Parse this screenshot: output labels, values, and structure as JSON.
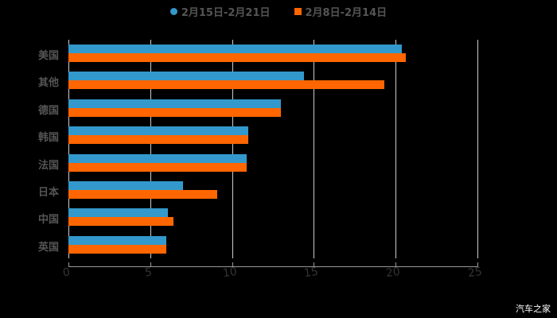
{
  "chart_data": {
    "type": "bar",
    "orientation": "horizontal",
    "title": "",
    "xlabel": "",
    "ylabel": "",
    "xlim": [
      0,
      25
    ],
    "x_ticks": [
      "0",
      "5",
      "10",
      "15",
      "20",
      "25"
    ],
    "grid": true,
    "legend_position": "top",
    "categories": [
      "美国",
      "其他",
      "德国",
      "韩国",
      "法国",
      "日本",
      "中国",
      "英国"
    ],
    "series": [
      {
        "name": "2月15日-2月21日",
        "color": "#3399cc",
        "values": [
          20.4,
          14.4,
          13.0,
          11.0,
          10.9,
          7.0,
          6.1,
          6.0
        ]
      },
      {
        "name": "2月8日-2月14日",
        "color": "#ff6600",
        "values": [
          20.6,
          19.3,
          13.0,
          11.0,
          10.9,
          9.1,
          6.4,
          6.0
        ]
      }
    ]
  },
  "legend": {
    "items": [
      {
        "label": "2月15日-2月21日",
        "color": "#3399cc",
        "marker": "circle"
      },
      {
        "label": "2月8日-2月14日",
        "color": "#ff6600",
        "marker": "square"
      }
    ]
  },
  "watermark": "汽车之家"
}
